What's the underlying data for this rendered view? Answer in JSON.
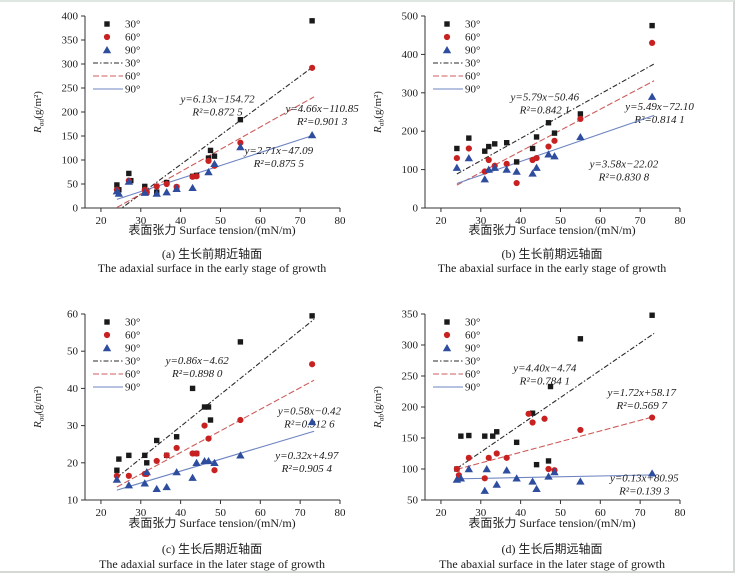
{
  "figure": {
    "xlabel": "表面张力 Surface tension/(mN/m)",
    "legend_markers": [
      "30°",
      "60°",
      "90°"
    ],
    "legend_lines": [
      "30°",
      "60°",
      "90°"
    ],
    "series_styles": {
      "s30": {
        "marker": "square",
        "marker_color": "#1a1a1a",
        "line_color": "#2b2b2b",
        "line_dash": "5 2 1.5 2"
      },
      "s60": {
        "marker": "circle",
        "marker_color": "#c82121",
        "line_color": "#cd5c5c",
        "line_dash": "6 2.5"
      },
      "s90": {
        "marker": "triangle",
        "marker_color": "#2e4d9e",
        "line_color": "#6f85c2",
        "line_dash": ""
      }
    },
    "text_color": "#1c1c1c"
  },
  "chart_data": [
    {
      "id": "a",
      "type": "scatter",
      "caption_zh": "(a) 生长前期近轴面",
      "caption_en": "The adaxial surface in the early stage of growth",
      "xlabel": "表面张力 Surface tension/(mN/m)",
      "xlim": [
        20,
        80
      ],
      "xticks": [
        20,
        30,
        40,
        50,
        60,
        70,
        80
      ],
      "ylim": [
        0,
        400
      ],
      "yticks": [
        0,
        50,
        100,
        150,
        200,
        250,
        300,
        350,
        400
      ],
      "ylabel": {
        "sym": "R",
        "sub": "ad",
        "unit": "(g/m²)"
      },
      "series": [
        {
          "angle": "30°",
          "key": "s30",
          "points": [
            [
              24,
              48
            ],
            [
              24.5,
              38
            ],
            [
              27,
              72
            ],
            [
              27.5,
              57
            ],
            [
              31,
              45
            ],
            [
              31.5,
              33
            ],
            [
              34,
              33
            ],
            [
              36.5,
              53
            ],
            [
              39,
              43
            ],
            [
              43,
              66
            ],
            [
              44,
              68
            ],
            [
              47,
              104
            ],
            [
              47.5,
              120
            ],
            [
              48.5,
              108
            ],
            [
              55,
              184
            ],
            [
              73,
              390
            ]
          ]
        },
        {
          "angle": "60°",
          "key": "s60",
          "points": [
            [
              24,
              38
            ],
            [
              27,
              57
            ],
            [
              31,
              38
            ],
            [
              31.5,
              33
            ],
            [
              34,
              45
            ],
            [
              36.5,
              50
            ],
            [
              39,
              44
            ],
            [
              43,
              65
            ],
            [
              44,
              66
            ],
            [
              47,
              98
            ],
            [
              48.5,
              88
            ],
            [
              55,
              136
            ],
            [
              73,
              292
            ]
          ]
        },
        {
          "angle": "90°",
          "key": "s90",
          "points": [
            [
              24,
              35
            ],
            [
              24.5,
              30
            ],
            [
              27,
              55
            ],
            [
              31,
              32
            ],
            [
              34,
              30
            ],
            [
              36.5,
              33
            ],
            [
              39,
              40
            ],
            [
              43,
              42
            ],
            [
              47,
              75
            ],
            [
              48.5,
              92
            ],
            [
              55,
              127
            ],
            [
              73,
              152
            ]
          ]
        }
      ],
      "fits": [
        {
          "key": "s30",
          "slope": 6.13,
          "intercept": -154.72,
          "eq": "y=6.13x−154.72",
          "r2": "R²=0.872 5",
          "label_fx": 0.52,
          "label_fy": 0.45
        },
        {
          "key": "s60",
          "slope": 4.66,
          "intercept": -110.85,
          "eq": "y=4.66x−110.85",
          "r2": "R²=0.901 3",
          "label_fx": 0.93,
          "label_fy": 0.5
        },
        {
          "key": "s90",
          "slope": 2.71,
          "intercept": -47.09,
          "eq": "y=2.71x−47.09",
          "r2": "R²=0.875 5",
          "label_fx": 0.76,
          "label_fy": 0.72
        }
      ]
    },
    {
      "id": "b",
      "type": "scatter",
      "caption_zh": "(b) 生长前期远轴面",
      "caption_en": "The abaxial surface in the early stage of growth",
      "xlabel": "表面张力 Surface tension/(mN/m)",
      "xlim": [
        20,
        80
      ],
      "xticks": [
        20,
        30,
        40,
        50,
        60,
        70,
        80
      ],
      "ylim": [
        0,
        500
      ],
      "yticks": [
        0,
        100,
        200,
        300,
        400,
        500
      ],
      "ylabel": {
        "sym": "R",
        "sub": "ab",
        "unit": "(g/m²)"
      },
      "series": [
        {
          "angle": "30°",
          "key": "s30",
          "points": [
            [
              24,
              155
            ],
            [
              27,
              182
            ],
            [
              31,
              148
            ],
            [
              32,
              160
            ],
            [
              33.5,
              167
            ],
            [
              36.5,
              170
            ],
            [
              39,
              120
            ],
            [
              43,
              155
            ],
            [
              44,
              185
            ],
            [
              47,
              222
            ],
            [
              48.5,
              195
            ],
            [
              55,
              245
            ],
            [
              73,
              475
            ]
          ]
        },
        {
          "angle": "60°",
          "key": "s60",
          "points": [
            [
              24,
              130
            ],
            [
              27,
              155
            ],
            [
              31,
              95
            ],
            [
              32,
              125
            ],
            [
              33.5,
              110
            ],
            [
              36.5,
              115
            ],
            [
              39,
              65
            ],
            [
              43,
              125
            ],
            [
              44,
              130
            ],
            [
              47,
              160
            ],
            [
              48.5,
              175
            ],
            [
              55,
              232
            ],
            [
              73,
              430
            ]
          ]
        },
        {
          "angle": "90°",
          "key": "s90",
          "points": [
            [
              24,
              105
            ],
            [
              27,
              130
            ],
            [
              31,
              75
            ],
            [
              32,
              100
            ],
            [
              33.5,
              105
            ],
            [
              36.5,
              100
            ],
            [
              39,
              95
            ],
            [
              43,
              90
            ],
            [
              44,
              105
            ],
            [
              47,
              140
            ],
            [
              48.5,
              135
            ],
            [
              55,
              185
            ],
            [
              73,
              290
            ]
          ]
        }
      ],
      "fits": [
        {
          "key": "s30",
          "slope": 5.79,
          "intercept": -50.46,
          "eq": "y=5.79x−50.46",
          "r2": "R²=0.842 1",
          "label_fx": 0.47,
          "label_fy": 0.44
        },
        {
          "key": "s60",
          "slope": 5.49,
          "intercept": -72.1,
          "eq": "y=5.49x−72.10",
          "r2": "R²=0.814 1",
          "label_fx": 0.92,
          "label_fy": 0.49
        },
        {
          "key": "s90",
          "slope": 3.58,
          "intercept": -22.02,
          "eq": "y=3.58x−22.02",
          "r2": "R²=0.830 8",
          "label_fx": 0.78,
          "label_fy": 0.79
        }
      ]
    },
    {
      "id": "c",
      "type": "scatter",
      "caption_zh": "(c) 生长后期近轴面",
      "caption_en": "The adaxial surface in the later stage of growth",
      "xlabel": "表面张力 Surface tension/(mN/m)",
      "xlim": [
        20,
        80
      ],
      "xticks": [
        20,
        30,
        40,
        50,
        60,
        70,
        80
      ],
      "ylim": [
        10,
        60
      ],
      "yticks": [
        10,
        20,
        30,
        40,
        50,
        60
      ],
      "ylabel": {
        "sym": "R",
        "sub": "ad",
        "unit": "(g/m²)"
      },
      "series": [
        {
          "angle": "30°",
          "key": "s30",
          "points": [
            [
              24,
              18
            ],
            [
              24.5,
              21
            ],
            [
              27,
              22
            ],
            [
              31,
              22
            ],
            [
              31.5,
              20
            ],
            [
              34,
              26
            ],
            [
              36.5,
              22
            ],
            [
              39,
              27
            ],
            [
              43,
              40
            ],
            [
              44,
              22.5
            ],
            [
              46,
              35
            ],
            [
              47,
              35
            ],
            [
              47.5,
              31.5
            ],
            [
              55,
              52.5
            ],
            [
              73,
              59.5
            ]
          ]
        },
        {
          "angle": "60°",
          "key": "s60",
          "points": [
            [
              24,
              16.5
            ],
            [
              27,
              16.5
            ],
            [
              31,
              17
            ],
            [
              31.5,
              17
            ],
            [
              34,
              20.5
            ],
            [
              36.5,
              22
            ],
            [
              39,
              24
            ],
            [
              43,
              22.5
            ],
            [
              44,
              22.5
            ],
            [
              46,
              30
            ],
            [
              47,
              26.5
            ],
            [
              48.5,
              18
            ],
            [
              55,
              31.5
            ],
            [
              73,
              46.5
            ]
          ]
        },
        {
          "angle": "90°",
          "key": "s90",
          "points": [
            [
              24,
              15.5
            ],
            [
              27,
              14
            ],
            [
              31,
              14.5
            ],
            [
              31.5,
              17.5
            ],
            [
              34,
              13
            ],
            [
              36.5,
              13.5
            ],
            [
              39,
              17.5
            ],
            [
              43,
              16
            ],
            [
              44,
              20
            ],
            [
              46,
              20.5
            ],
            [
              47,
              20.5
            ],
            [
              48.5,
              20
            ],
            [
              55,
              22
            ],
            [
              73,
              31
            ]
          ]
        }
      ],
      "fits": [
        {
          "key": "s30",
          "slope": 0.86,
          "intercept": -4.62,
          "eq": "y=0.86x−4.62",
          "r2": "R²=0.898 0",
          "label_fx": 0.44,
          "label_fy": 0.27
        },
        {
          "key": "s60",
          "slope": 0.58,
          "intercept": -0.42,
          "eq": "y=0.58x−0.42",
          "r2": "R²=0.912 6",
          "label_fx": 0.88,
          "label_fy": 0.54
        },
        {
          "key": "s90",
          "slope": 0.32,
          "intercept": 4.97,
          "eq": "y=0.32x+4.97",
          "r2": "R²=0.905 4",
          "label_fx": 0.87,
          "label_fy": 0.78
        }
      ]
    },
    {
      "id": "d",
      "type": "scatter",
      "caption_zh": "(d) 生长后期远轴面",
      "caption_en": "The abaxial surface in the later stage of growth",
      "xlabel": "表面张力 Surface tension/(mN/m)",
      "xlim": [
        20,
        80
      ],
      "xticks": [
        20,
        30,
        40,
        50,
        60,
        70,
        80
      ],
      "ylim": [
        50,
        350
      ],
      "yticks": [
        50,
        100,
        150,
        200,
        250,
        300,
        350
      ],
      "ylabel": {
        "sym": "R",
        "sub": "ab",
        "unit": "(g/m²)"
      },
      "series": [
        {
          "angle": "30°",
          "key": "s30",
          "points": [
            [
              24,
              100
            ],
            [
              25,
              153
            ],
            [
              27,
              154
            ],
            [
              31,
              153
            ],
            [
              33,
              153
            ],
            [
              34,
              160
            ],
            [
              39,
              143
            ],
            [
              43,
              190
            ],
            [
              44,
              107
            ],
            [
              47,
              113
            ],
            [
              47.5,
              233
            ],
            [
              55,
              310
            ],
            [
              73,
              348
            ]
          ]
        },
        {
          "angle": "60°",
          "key": "s60",
          "points": [
            [
              24,
              100
            ],
            [
              24.5,
              90
            ],
            [
              27,
              118
            ],
            [
              31,
              85
            ],
            [
              32,
              118
            ],
            [
              34,
              125
            ],
            [
              36.5,
              118
            ],
            [
              42,
              189
            ],
            [
              43,
              175
            ],
            [
              46,
              181
            ],
            [
              47,
              100
            ],
            [
              48.5,
              98
            ],
            [
              55,
              163
            ],
            [
              73,
              183
            ]
          ]
        },
        {
          "angle": "90°",
          "key": "s90",
          "points": [
            [
              24,
              83
            ],
            [
              25,
              85
            ],
            [
              27,
              100
            ],
            [
              31,
              65
            ],
            [
              31.5,
              100
            ],
            [
              34,
              75
            ],
            [
              36.5,
              98
            ],
            [
              39,
              85
            ],
            [
              43,
              80
            ],
            [
              44,
              68
            ],
            [
              47,
              88
            ],
            [
              48.5,
              95
            ],
            [
              55,
              80
            ],
            [
              73,
              93
            ]
          ]
        }
      ],
      "fits": [
        {
          "key": "s30",
          "slope": 4.4,
          "intercept": -4.74,
          "eq": "y=4.40x−4.74",
          "r2": "R²=0.784 1",
          "label_fx": 0.47,
          "label_fy": 0.31
        },
        {
          "key": "s60",
          "slope": 1.72,
          "intercept": 58.17,
          "eq": "y=1.72x+58.17",
          "r2": "R²=0.569 7",
          "label_fx": 0.85,
          "label_fy": 0.44
        },
        {
          "key": "s90",
          "slope": 0.13,
          "intercept": 80.95,
          "eq": "y=0.13x+80.95",
          "r2": "R²=0.139 3",
          "label_fx": 0.86,
          "label_fy": 0.9
        }
      ]
    }
  ]
}
